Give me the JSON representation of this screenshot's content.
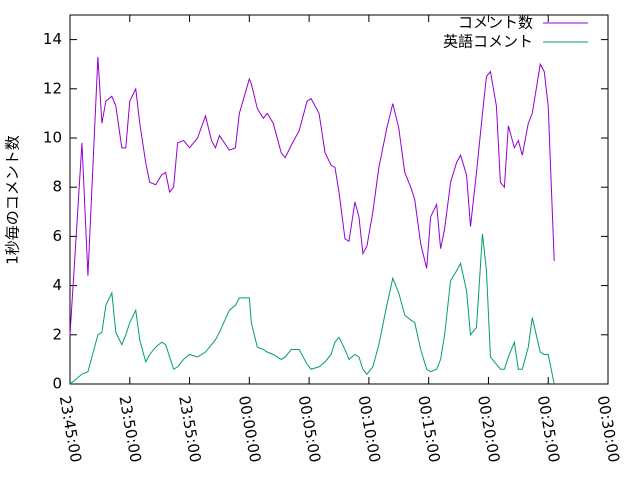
{
  "chart_data": {
    "type": "line",
    "ylabel": "1秒毎のコメント数",
    "x": [
      "23:45:00",
      "23:46:00",
      "23:46:30",
      "23:47:20",
      "23:47:40",
      "23:48:00",
      "23:48:30",
      "23:48:50",
      "23:49:20",
      "23:49:40",
      "23:50:00",
      "23:50:30",
      "23:50:50",
      "23:51:20",
      "23:51:40",
      "23:52:10",
      "23:52:40",
      "23:53:00",
      "23:53:20",
      "23:53:40",
      "23:54:00",
      "23:54:30",
      "23:55:00",
      "23:55:40",
      "23:56:20",
      "23:56:50",
      "23:57:10",
      "23:57:30",
      "23:58:20",
      "23:58:50",
      "23:59:10",
      "00:00:00",
      "00:00:10",
      "00:00:40",
      "00:01:10",
      "00:01:30",
      "00:02:00",
      "00:02:40",
      "00:03:00",
      "00:03:30",
      "00:04:10",
      "00:04:50",
      "00:05:10",
      "00:05:50",
      "00:06:20",
      "00:06:50",
      "00:07:10",
      "00:07:30",
      "00:08:00",
      "00:08:20",
      "00:08:50",
      "00:09:10",
      "00:09:30",
      "00:09:50",
      "00:10:20",
      "00:10:50",
      "00:11:30",
      "00:12:00",
      "00:12:30",
      "00:13:00",
      "00:13:30",
      "00:13:50",
      "00:14:20",
      "00:14:50",
      "00:15:10",
      "00:15:40",
      "00:16:00",
      "00:16:20",
      "00:16:50",
      "00:17:20",
      "00:17:40",
      "00:18:10",
      "00:18:30",
      "00:19:00",
      "00:19:30",
      "00:19:50",
      "00:20:10",
      "00:20:40",
      "00:21:00",
      "00:21:20",
      "00:21:40",
      "00:22:10",
      "00:22:30",
      "00:22:50",
      "00:23:20",
      "00:23:40",
      "00:24:20",
      "00:24:40",
      "00:25:00",
      "00:25:30"
    ],
    "series": [
      {
        "name": "コメント数",
        "color": "#9400d3",
        "values": [
          2.0,
          9.8,
          4.4,
          13.3,
          10.6,
          11.5,
          11.7,
          11.3,
          9.6,
          9.6,
          11.5,
          12.0,
          10.6,
          9.0,
          8.2,
          8.1,
          8.5,
          8.6,
          7.8,
          8.0,
          9.8,
          9.9,
          9.6,
          10.0,
          10.9,
          9.9,
          9.6,
          10.1,
          9.5,
          9.6,
          11.0,
          12.4,
          12.2,
          11.2,
          10.8,
          11.0,
          10.6,
          9.4,
          9.2,
          9.7,
          10.3,
          11.5,
          11.6,
          11.0,
          9.4,
          8.9,
          8.8,
          7.8,
          5.9,
          5.8,
          7.4,
          6.8,
          5.3,
          5.6,
          7.0,
          8.8,
          10.4,
          11.4,
          10.4,
          8.6,
          8.0,
          7.5,
          5.7,
          4.7,
          6.8,
          7.3,
          5.5,
          6.3,
          8.2,
          9.0,
          9.3,
          8.5,
          6.4,
          8.6,
          11.0,
          12.5,
          12.7,
          11.3,
          8.2,
          8.0,
          10.5,
          9.6,
          9.9,
          9.3,
          10.6,
          11.0,
          13.0,
          12.7,
          11.3,
          5.0
        ]
      },
      {
        "name": "英語コメント",
        "color": "#009e73",
        "values": [
          0.0,
          0.4,
          0.5,
          2.0,
          2.1,
          3.2,
          3.7,
          2.1,
          1.6,
          2.0,
          2.5,
          3.0,
          1.8,
          0.9,
          1.2,
          1.5,
          1.7,
          1.6,
          1.1,
          0.6,
          0.7,
          1.0,
          1.2,
          1.1,
          1.3,
          1.6,
          1.8,
          2.1,
          3.0,
          3.2,
          3.5,
          3.5,
          2.5,
          1.5,
          1.4,
          1.3,
          1.2,
          1.0,
          1.1,
          1.4,
          1.4,
          0.8,
          0.6,
          0.7,
          0.9,
          1.2,
          1.7,
          1.9,
          1.4,
          1.0,
          1.2,
          1.1,
          0.6,
          0.4,
          0.7,
          1.6,
          3.2,
          4.3,
          3.7,
          2.8,
          2.6,
          2.5,
          1.4,
          0.6,
          0.5,
          0.6,
          1.0,
          2.0,
          4.2,
          4.6,
          4.9,
          3.8,
          2.0,
          2.3,
          6.1,
          4.6,
          1.1,
          0.8,
          0.6,
          0.6,
          1.1,
          1.7,
          0.6,
          0.6,
          1.5,
          2.7,
          1.3,
          1.2,
          1.2,
          0.0
        ]
      }
    ],
    "xlim": [
      "23:45:00",
      "00:30:00"
    ],
    "xticks": [
      "23:45:00",
      "23:50:00",
      "23:55:00",
      "00:00:00",
      "00:05:00",
      "00:10:00",
      "00:15:00",
      "00:20:00",
      "00:25:00",
      "00:30:00"
    ],
    "ylim": [
      0,
      15
    ],
    "yticks": [
      0,
      2,
      4,
      6,
      8,
      10,
      12,
      14
    ],
    "legend": "top right"
  }
}
